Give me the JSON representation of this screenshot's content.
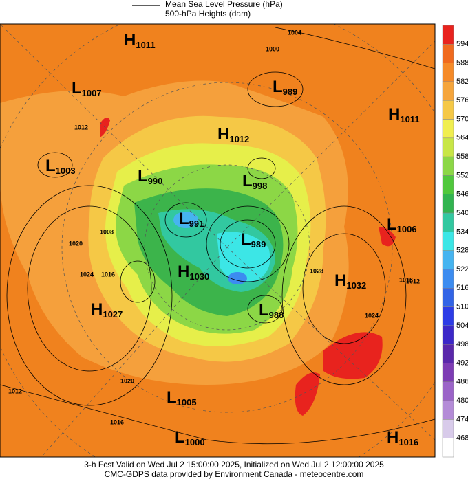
{
  "legend": {
    "line_label": "Mean Sea Level Pressure (hPa)",
    "fill_label": "500-hPa Heights (dam)"
  },
  "centers": [
    {
      "letter": "H",
      "value": "1011"
    },
    {
      "letter": "L",
      "value": "1007"
    },
    {
      "letter": "L",
      "value": "989"
    },
    {
      "letter": "H",
      "value": "1011"
    },
    {
      "letter": "H",
      "value": "1012"
    },
    {
      "letter": "L",
      "value": "1003"
    },
    {
      "letter": "L",
      "value": "990"
    },
    {
      "letter": "L",
      "value": "998"
    },
    {
      "letter": "L",
      "value": "991"
    },
    {
      "letter": "L",
      "value": "1006"
    },
    {
      "letter": "L",
      "value": "989"
    },
    {
      "letter": "H",
      "value": "1030"
    },
    {
      "letter": "H",
      "value": "1032"
    },
    {
      "letter": "H",
      "value": "1027"
    },
    {
      "letter": "L",
      "value": "988"
    },
    {
      "letter": "L",
      "value": "1005"
    },
    {
      "letter": "L",
      "value": "1000"
    },
    {
      "letter": "H",
      "value": "1016"
    }
  ],
  "contour_labels": [
    "1004",
    "1000",
    "1012",
    "1020",
    "1024",
    "1016",
    "1008",
    "1028",
    "1024",
    "1016",
    "1012",
    "1020",
    "1016",
    "1012"
  ],
  "colorbar": {
    "labels": [
      "594",
      "588",
      "582",
      "576",
      "570",
      "564",
      "558",
      "552",
      "546",
      "540",
      "534",
      "528",
      "522",
      "516",
      "510",
      "504",
      "498",
      "492",
      "486",
      "480",
      "474",
      "468"
    ],
    "colors": [
      "#e8231e",
      "#f06a1e",
      "#f58a28",
      "#f5a53c",
      "#f5c846",
      "#f0ee50",
      "#c8e646",
      "#8cd746",
      "#50c83c",
      "#32b450",
      "#32c8a0",
      "#3ce6e6",
      "#46b4f0",
      "#3c8cf0",
      "#3264e6",
      "#2d3ce6",
      "#3c28c8",
      "#5a28aa",
      "#7d3cb4",
      "#9b64c8",
      "#b48cd7",
      "#d8cbea",
      "#ffffff"
    ]
  },
  "footer": {
    "line1": "3-h Fcst Valid on Wed Jul  2 15:00:00 2025, Initialized on Wed Jul  2 12:00:00 2025",
    "line2": "CMC-GDPS data provided by Environment Canada - meteocentre.com"
  }
}
